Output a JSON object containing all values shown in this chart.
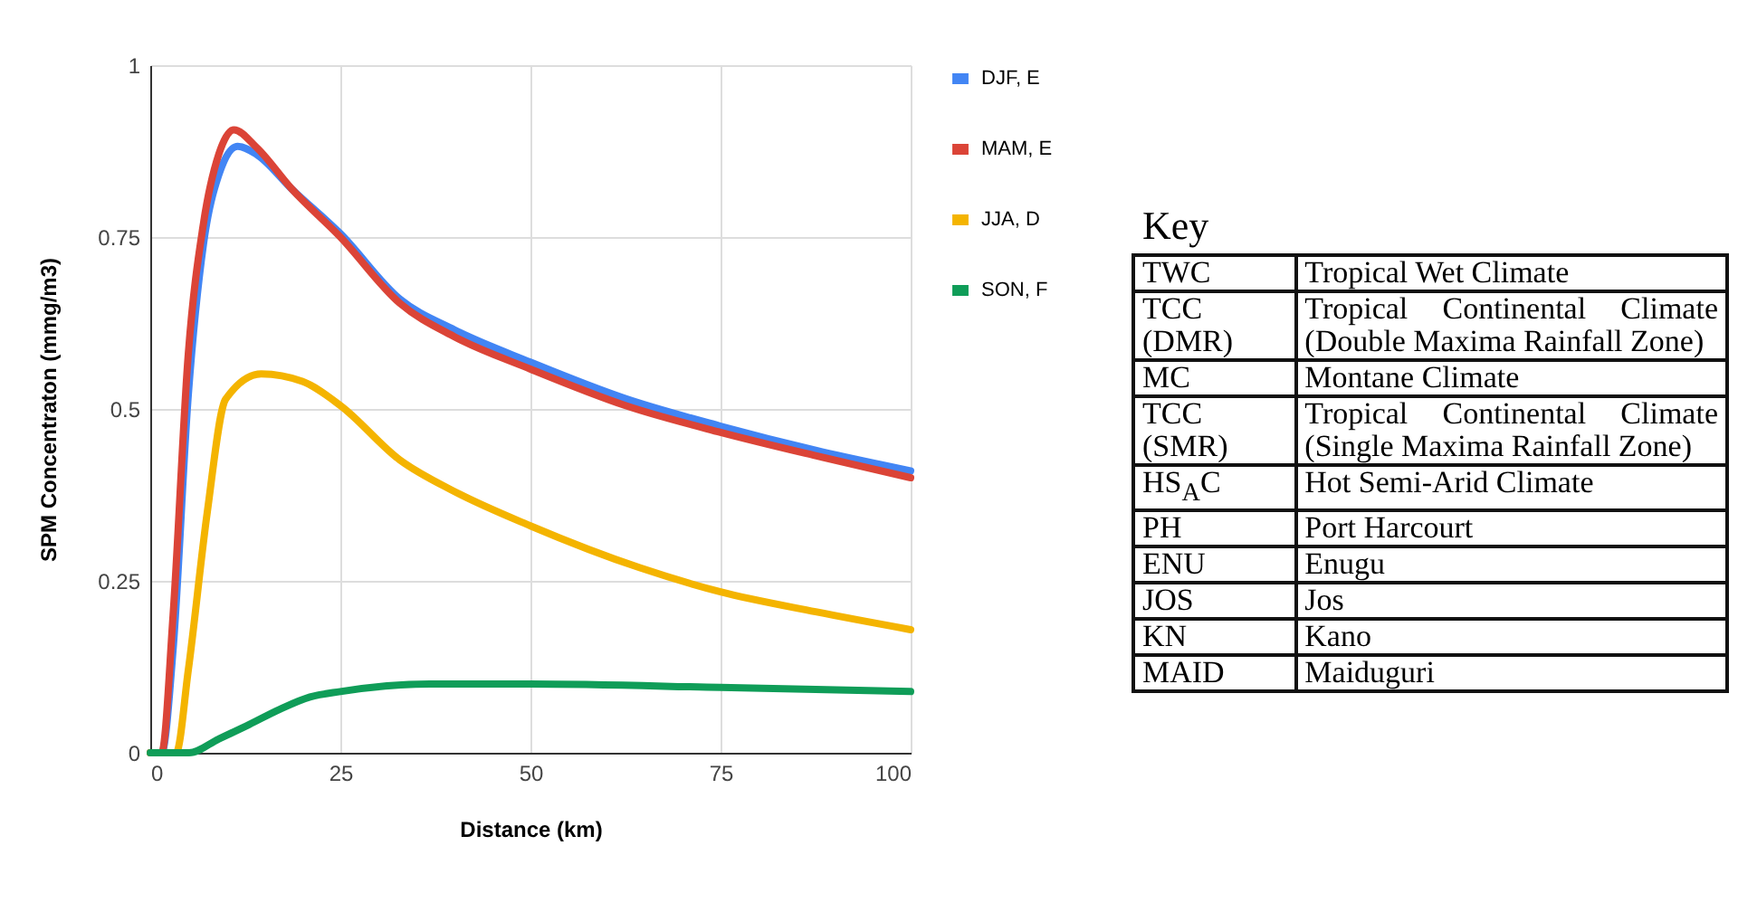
{
  "chart_data": [
    {
      "type": "line",
      "xlabel": "Distance (km)",
      "ylabel": "SPM Concentraton (mmg/m3)",
      "xlim": [
        0,
        100
      ],
      "xticks": [
        0,
        25,
        50,
        75,
        100
      ],
      "ylim": [
        0,
        1
      ],
      "yticks": [
        0,
        0.25,
        0.5,
        0.75,
        1
      ],
      "grid": true,
      "legend": "top right",
      "marker": "none",
      "line_style": "solid",
      "series": [
        {
          "name": "DJF, E",
          "color": "#4285f4",
          "x": [
            0,
            1.5,
            3,
            5,
            7,
            9,
            11.5,
            14,
            18.6,
            25,
            32.8,
            40,
            50,
            62.5,
            75,
            87.5,
            100
          ],
          "values": [
            0,
            0,
            0.15,
            0.52,
            0.74,
            0.84,
            0.882,
            0.87,
            0.82,
            0.755,
            0.66,
            0.615,
            0.568,
            0.515,
            0.475,
            0.44,
            0.41
          ]
        },
        {
          "name": "MAM, E",
          "color": "#db4437",
          "x": [
            0,
            1.5,
            3,
            5,
            7,
            9,
            11,
            14,
            18.6,
            25,
            32.8,
            40,
            50,
            62.5,
            75,
            87.5,
            100
          ],
          "values": [
            0,
            0,
            0.2,
            0.58,
            0.77,
            0.87,
            0.906,
            0.88,
            0.82,
            0.75,
            0.654,
            0.605,
            0.558,
            0.505,
            0.466,
            0.432,
            0.4
          ]
        },
        {
          "name": "JJA, D",
          "color": "#f4b400",
          "x": [
            0,
            3.4,
            5,
            7.5,
            9.9,
            14.6,
            20,
            25,
            32.8,
            40,
            50,
            64.4,
            75,
            87.5,
            100
          ],
          "values": [
            0,
            0,
            0.12,
            0.35,
            0.514,
            0.551,
            0.54,
            0.505,
            0.426,
            0.38,
            0.33,
            0.269,
            0.234,
            0.205,
            0.179
          ]
        },
        {
          "name": "SON, F",
          "color": "#0f9d58",
          "x": [
            0,
            5.1,
            9,
            13,
            17,
            21,
            25,
            36.8,
            50,
            75,
            100
          ],
          "values": [
            0,
            0,
            0.02,
            0.041,
            0.063,
            0.081,
            0.089,
            0.1,
            0.1,
            0.095,
            0.089
          ]
        }
      ]
    },
    {
      "type": "other",
      "title": "Key",
      "annotations": [
        "TWC",
        "Tropical Wet Climate",
        "TCC (DMR)",
        "Tropical Continental Climate (Double Maxima Rainfall Zone)",
        "MC",
        "Montane Climate",
        "TCC (SMR)",
        "Tropical Continental Climate (Single Maxima Rainfall Zone)",
        "HS$_{A}$C",
        "Hot Semi-Arid Climate",
        "PH",
        "Port Harcourt",
        "ENU",
        "Enugu",
        "JOS",
        "Jos",
        "KN",
        "Kano",
        "MAID",
        "Maiduguri"
      ]
    }
  ]
}
